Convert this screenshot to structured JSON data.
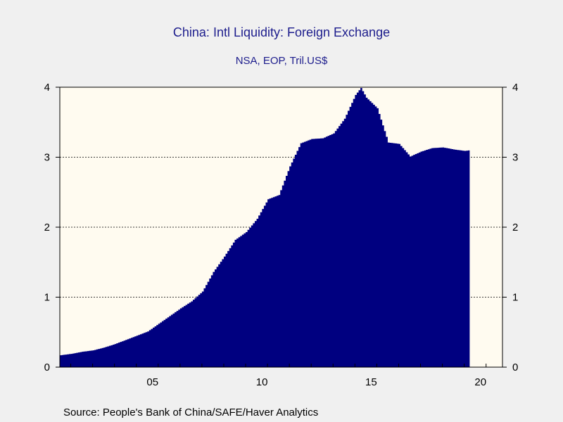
{
  "chart_data": {
    "type": "area",
    "title": "China: Intl Liquidity: Foreign Exchange",
    "subtitle": "NSA, EOP, Tril.US$",
    "source": "Source:  People's Bank of China/SAFE/Haver Analytics",
    "ylim": [
      0,
      4
    ],
    "xlim": [
      2000.5,
      2020.75
    ],
    "y_ticks": [
      "0",
      "1",
      "2",
      "3",
      "4"
    ],
    "x_ticks": [
      "05",
      "10",
      "15",
      "20"
    ],
    "grid": "horizontal dotted",
    "fill_color": "#000080",
    "plot_background": "#fffbf0",
    "series": [
      {
        "x": [
          2000.5,
          2001.0,
          2001.5,
          2002.0,
          2002.5,
          2003.0,
          2003.5,
          2004.0,
          2004.5,
          2005.0,
          2005.5,
          2006.0,
          2006.5,
          2007.0,
          2007.5,
          2008.0,
          2008.5,
          2009.0,
          2009.5,
          2010.0,
          2010.5,
          2011.0,
          2011.5,
          2012.0,
          2012.5,
          2013.0,
          2013.5,
          2014.0,
          2014.25,
          2014.5,
          2015.0,
          2015.5,
          2016.0,
          2016.5,
          2017.0,
          2017.5,
          2018.0,
          2018.5,
          2019.0,
          2019.25
        ],
        "values": [
          0.17,
          0.19,
          0.22,
          0.24,
          0.28,
          0.33,
          0.39,
          0.45,
          0.51,
          0.62,
          0.73,
          0.84,
          0.94,
          1.08,
          1.36,
          1.58,
          1.82,
          1.93,
          2.12,
          2.4,
          2.46,
          2.87,
          3.2,
          3.26,
          3.27,
          3.34,
          3.55,
          3.89,
          3.99,
          3.85,
          3.7,
          3.21,
          3.19,
          3.01,
          3.08,
          3.13,
          3.14,
          3.11,
          3.09,
          3.1
        ]
      }
    ]
  }
}
